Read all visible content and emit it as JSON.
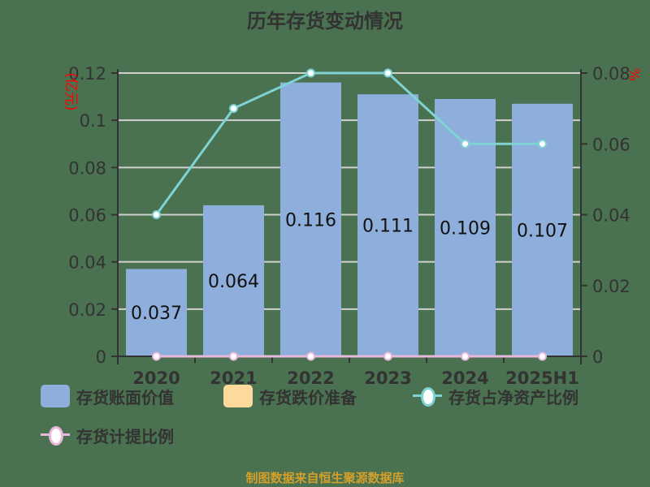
{
  "title": "历年存货变动情况",
  "footer": "制图数据来自恒生聚源数据库",
  "colors": {
    "background": "#4a7150",
    "bar_book_value": "#8eaedb",
    "bar_impairment": "#fdd99b",
    "line_ratio_net_assets": "#7fd3d3",
    "line_provision_ratio": "#e7b8dc",
    "axis_unit": "#ff0000",
    "text": "#333333",
    "footer": "#d4a02a"
  },
  "axes": {
    "left_unit": "亿元",
    "right_unit": "%",
    "left_ticks": [
      "0",
      "0.02",
      "0.04",
      "0.06",
      "0.08",
      "0.1",
      "0.12"
    ],
    "right_ticks": [
      "0",
      "0.02",
      "0.04",
      "0.06",
      "0.08"
    ]
  },
  "legend": {
    "items": [
      {
        "label": "存货账面价值",
        "type": "bar"
      },
      {
        "label": "存货跌价准备",
        "type": "bar"
      },
      {
        "label": "存货占净资产比例",
        "type": "line"
      },
      {
        "label": "存货计提比例",
        "type": "line"
      }
    ]
  },
  "chart_data": {
    "type": "bar",
    "title": "历年存货变动情况",
    "categories": [
      "2020",
      "2021",
      "2022",
      "2023",
      "2024",
      "2025H1"
    ],
    "series": [
      {
        "name": "存货账面价值",
        "type": "bar",
        "axis": "left",
        "values": [
          0.037,
          0.064,
          0.116,
          0.111,
          0.109,
          0.107
        ],
        "labels": [
          "0.037",
          "0.064",
          "0.116",
          "0.111",
          "0.109",
          "0.107"
        ]
      },
      {
        "name": "存货跌价准备",
        "type": "bar",
        "axis": "left",
        "values": [
          0,
          0,
          0,
          0,
          0,
          0
        ]
      },
      {
        "name": "存货占净资产比例",
        "type": "line",
        "axis": "right",
        "values": [
          0.04,
          0.07,
          0.08,
          0.08,
          0.06,
          0.06
        ]
      },
      {
        "name": "存货计提比例",
        "type": "line",
        "axis": "right",
        "values": [
          0,
          0,
          0,
          0,
          0,
          0
        ]
      }
    ],
    "xlabel": "",
    "ylabel": "亿元",
    "y2label": "%",
    "ylim": [
      0,
      0.12
    ],
    "y2lim": [
      0,
      0.08
    ],
    "grid": true,
    "legend_position": "bottom"
  }
}
